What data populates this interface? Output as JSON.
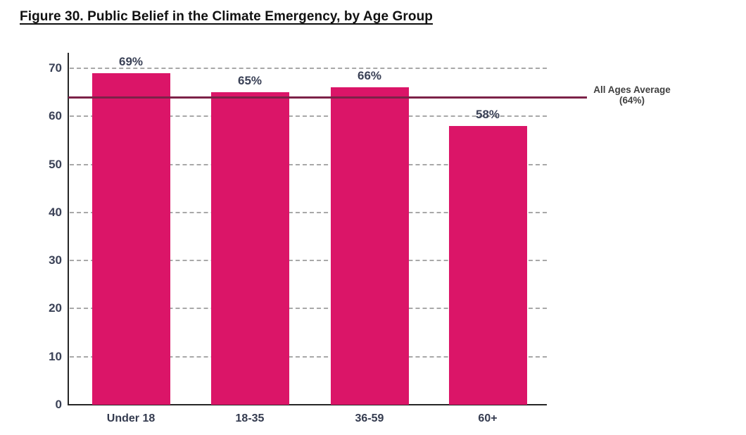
{
  "figure": {
    "title": "Figure 30. Public Belief in the Climate Emergency, by Age Group"
  },
  "chart_data": {
    "type": "bar",
    "title": "Figure 30. Public Belief in the Climate Emergency, by Age Group",
    "categories": [
      "Under 18",
      "18-35",
      "36-59",
      "60+"
    ],
    "values": [
      69,
      65,
      66,
      58
    ],
    "data_labels": [
      "69%",
      "65%",
      "66%",
      "58%"
    ],
    "xlabel": "",
    "ylabel": "",
    "ylim": [
      0,
      70
    ],
    "yticks": [
      0,
      10,
      20,
      30,
      40,
      50,
      60,
      70
    ],
    "grid": "horizontal dashed",
    "legend_position": "none",
    "average_line": {
      "value": 64,
      "label_line1": "All Ages Average",
      "label_line2": "(64%)"
    },
    "colors": {
      "bar": "#db1568",
      "average_line": "#7c2248",
      "axis": "#262626",
      "gridline": "#a8a8a8",
      "label": "#3a4156"
    }
  }
}
